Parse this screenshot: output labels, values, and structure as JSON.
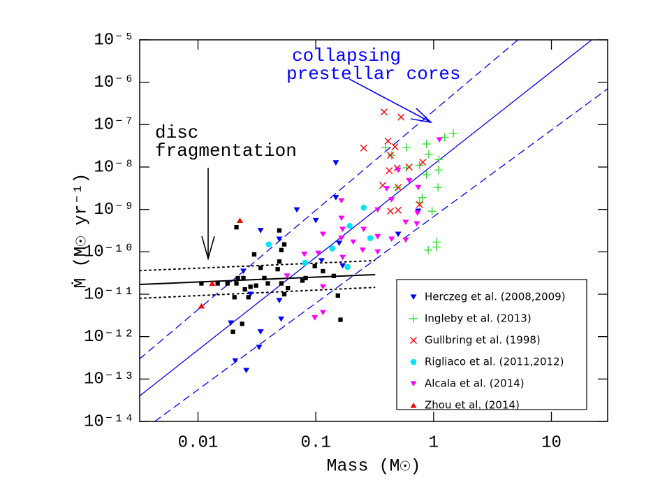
{
  "chart_data": {
    "type": "scatter",
    "xlabel": "Mass (M☉)",
    "ylabel": "Ṁ (M☉ yr⁻¹)",
    "xlog": true,
    "ylog": true,
    "xlim": [
      0.0032,
      30
    ],
    "ylim": [
      1e-14,
      1e-05
    ],
    "xticks": [
      0.01,
      0.1,
      1,
      10
    ],
    "yticks": [
      {
        "value": 1e-05,
        "label": "10⁻⁵"
      },
      {
        "value": 1e-06,
        "label": "10⁻⁶"
      },
      {
        "value": 1e-07,
        "label": "10⁻⁷"
      },
      {
        "value": 1e-08,
        "label": "10⁻⁸"
      },
      {
        "value": 1e-09,
        "label": "10⁻⁹"
      },
      {
        "value": 1e-10,
        "label": "10⁻¹⁰"
      },
      {
        "value": 1e-11,
        "label": "10⁻¹¹"
      },
      {
        "value": 1e-12,
        "label": "10⁻¹²"
      },
      {
        "value": 1e-13,
        "label": "10⁻¹³"
      },
      {
        "value": 1e-14,
        "label": "10⁻¹⁴"
      }
    ],
    "legend": "lower right",
    "series": [
      {
        "name": "Herczeg et al. (2008,2009)",
        "color": "#0000ff",
        "marker": "tri-down",
        "x": [
          0.148,
          0.148,
          0.069,
          0.1,
          0.034,
          0.049,
          0.158,
          0.112,
          0.169,
          0.0243,
          0.049,
          0.0279,
          0.0508,
          0.019,
          0.034,
          0.033,
          0.0207,
          0.0257,
          0.74,
          0.5
        ],
        "y": [
          1.26e-08,
          1.9e-09,
          9.8e-10,
          5.5e-10,
          3.2e-10,
          2e-10,
          1.6e-10,
          6.2e-11,
          4.7e-11,
          3.5e-11,
          7.1e-12,
          1e-11,
          2.6e-12,
          2.1e-12,
          1.3e-12,
          5.6e-13,
          2.7e-13,
          1.6e-13,
          9.1e-10,
          2.6e-10
        ]
      },
      {
        "name": "Ingleby et al. (2013)",
        "color": "#33e033",
        "marker": "plus",
        "x": [
          1.47,
          1.24,
          0.39,
          0.59,
          0.87,
          0.44,
          1.11,
          0.91,
          1.1,
          0.76,
          0.59,
          0.87,
          0.49,
          1.09,
          0.8,
          0.76,
          0.97,
          0.9,
          1.06,
          1.06
        ],
        "y": [
          6.2e-08,
          5e-08,
          2.9e-08,
          2.9e-08,
          3.5e-08,
          1.9e-08,
          1.5e-08,
          2e-08,
          8.5e-09,
          1.1e-08,
          9.6e-09,
          6.6e-09,
          3.3e-09,
          3.3e-09,
          1.9e-09,
          1.45e-09,
          9.1e-10,
          1.1e-10,
          1.7e-10,
          1.3e-10
        ]
      },
      {
        "name": "Gullbring et al. (1998)",
        "color": "#ff0000",
        "marker": "x",
        "x": [
          0.38,
          0.53,
          0.255,
          0.41,
          0.47,
          0.43,
          0.42,
          0.49,
          0.62,
          0.81,
          0.37,
          0.5,
          0.43,
          0.76,
          0.5
        ],
        "y": [
          2e-07,
          1.5e-07,
          2.8e-08,
          4.1e-08,
          3e-08,
          1.9e-08,
          8.2e-09,
          9.5e-09,
          1e-08,
          1.3e-08,
          3.7e-09,
          3.3e-09,
          9.1e-10,
          1.3e-09,
          9.6e-10
        ]
      },
      {
        "name": "Rigliaco et al. (2011,2012)",
        "color": "#00e5ff",
        "marker": "circle",
        "x": [
          0.255,
          0.194,
          0.138,
          0.081,
          0.04,
          0.29,
          0.186
        ],
        "y": [
          1.1e-09,
          4.1e-10,
          1.2e-10,
          5.5e-11,
          1.5e-10,
          2.1e-10,
          4.4e-11
        ]
      },
      {
        "name": "Alcala et al. (2014)",
        "color": "#ff00ff",
        "marker": "tri-down",
        "x": [
          1.12,
          0.5,
          0.62,
          0.74,
          0.4,
          0.165,
          0.44,
          0.335,
          0.73,
          0.58,
          0.165,
          0.255,
          0.169,
          0.115,
          0.165,
          0.335,
          0.44,
          0.58,
          0.72,
          0.105,
          0.08,
          0.057,
          0.115,
          0.115,
          0.098,
          0.169,
          0.25,
          0.335,
          0.208
        ],
        "y": [
          4.4e-08,
          8.5e-09,
          4.8e-09,
          3.3e-09,
          3.1e-09,
          1.6e-09,
          1.7e-09,
          9.8e-10,
          8.2e-10,
          5e-10,
          6.2e-10,
          3.4e-10,
          3.4e-10,
          2.6e-10,
          2.1e-10,
          2.3e-10,
          2e-10,
          1.9e-10,
          4.6e-10,
          9.3e-11,
          8.8e-11,
          2.7e-11,
          1.5e-11,
          3.7e-12,
          2.8e-12,
          7.4e-11,
          1.1e-10,
          1e-10,
          1.7e-10
        ]
      },
      {
        "name": "Zhou et al. (2014)",
        "color": "#ff0000",
        "marker": "tri-up",
        "x": [
          0.0227,
          0.0132,
          0.0107
        ],
        "y": [
          5.5e-10,
          1.8e-11,
          5.3e-12
        ]
      },
      {
        "color": "#000000",
        "marker": "square",
        "x": [
          0.0212,
          0.049,
          0.054,
          0.051,
          0.03,
          0.049,
          0.034,
          0.0475,
          0.0218,
          0.0243,
          0.0212,
          0.0204,
          0.025,
          0.0279,
          0.0311,
          0.0268,
          0.0366,
          0.0392,
          0.051,
          0.054,
          0.058,
          0.082,
          0.098,
          0.115,
          0.142,
          0.154,
          0.162,
          0.077,
          0.0107,
          0.0147,
          0.0178,
          0.0237,
          0.0198
        ],
        "y": [
          3.8e-10,
          3.2e-10,
          1.5e-10,
          1.1e-10,
          8.7e-11,
          5.9e-11,
          4.2e-11,
          3.9e-11,
          2.4e-11,
          2.4e-11,
          1.8e-11,
          8.5e-12,
          1.3e-11,
          1.5e-11,
          1.6e-11,
          8.5e-12,
          2.4e-11,
          1.8e-11,
          1.8e-11,
          1e-11,
          1.4e-11,
          2.4e-11,
          4.6e-11,
          3.5e-11,
          2.7e-11,
          9.3e-12,
          2.5e-12,
          2.1e-11,
          1.8e-11,
          1.8e-11,
          1.8e-11,
          2e-12,
          1.3e-12
        ]
      }
    ],
    "lines": [
      {
        "color": "#0000ff",
        "style": "solid",
        "x": [
          0.0032,
          22
        ],
        "y": [
          4e-14,
          1e-05
        ]
      },
      {
        "color": "#0000ff",
        "style": "dashed",
        "x": [
          0.0032,
          5.2
        ],
        "y": [
          3e-13,
          1e-05
        ]
      },
      {
        "color": "#0000ff",
        "style": "dashed",
        "x": [
          0.0043,
          30
        ],
        "y": [
          1e-14,
          7e-07
        ]
      },
      {
        "color": "#000000",
        "style": "solid",
        "x": [
          0.0032,
          0.316
        ],
        "y": [
          1.7e-11,
          2.9e-11
        ]
      },
      {
        "color": "#000000",
        "style": "dotted",
        "x": [
          0.0032,
          0.316
        ],
        "y": [
          3.6e-11,
          6.2e-11
        ]
      },
      {
        "color": "#000000",
        "style": "dotted",
        "x": [
          0.0032,
          0.316
        ],
        "y": [
          8e-12,
          1.45e-11
        ]
      }
    ],
    "annotations": [
      {
        "text": "collapsing",
        "color": "#0000ff"
      },
      {
        "text": "prestellar cores",
        "color": "#0000ff"
      },
      {
        "text": "disc",
        "color": "#000000"
      },
      {
        "text": "fragmentation",
        "color": "#000000"
      }
    ]
  }
}
